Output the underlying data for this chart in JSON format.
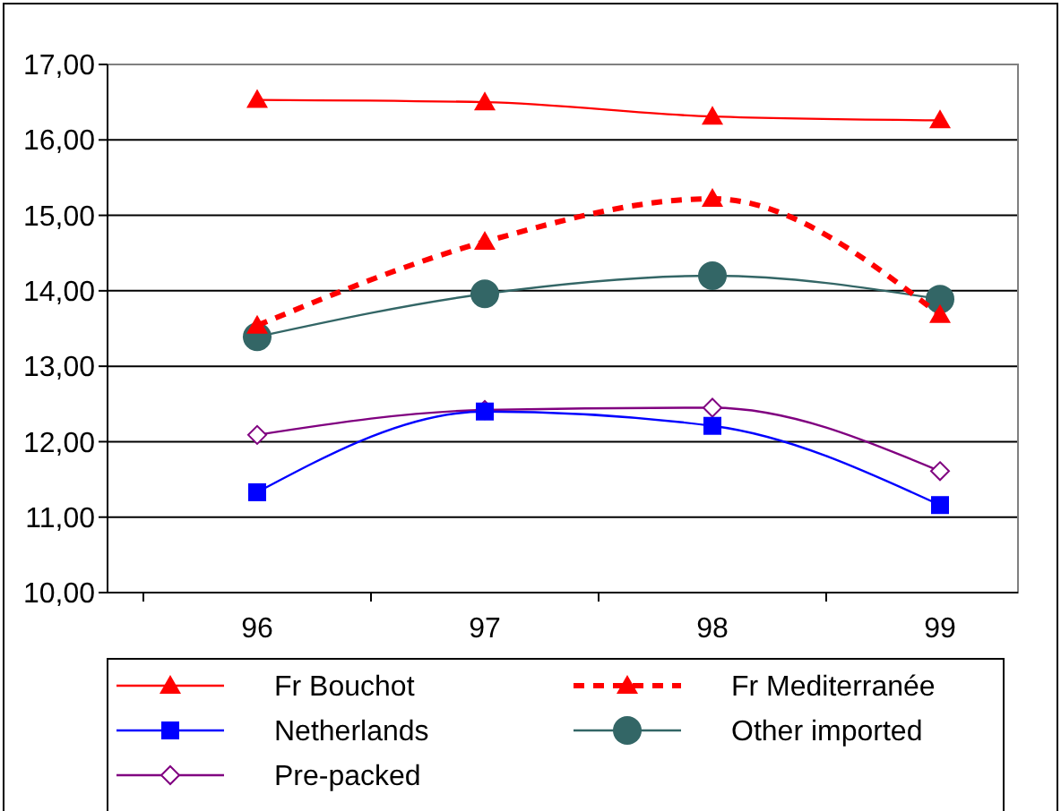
{
  "chart_data": {
    "type": "line",
    "categories": [
      "96",
      "97",
      "98",
      "99"
    ],
    "ylim": [
      10,
      17
    ],
    "yticks": [
      {
        "value": 10,
        "label": "10,00"
      },
      {
        "value": 11,
        "label": "11,00"
      },
      {
        "value": 12,
        "label": "12,00"
      },
      {
        "value": 13,
        "label": "13,00"
      },
      {
        "value": 14,
        "label": "14,00"
      },
      {
        "value": 15,
        "label": "15,00"
      },
      {
        "value": 16,
        "label": "16,00"
      },
      {
        "value": 17,
        "label": "17,00"
      }
    ],
    "grid": "y",
    "legend": "bottom",
    "series": [
      {
        "name": "Fr Bouchot",
        "color": "#ff0000",
        "values": [
          16.53,
          16.5,
          16.31,
          16.26
        ],
        "marker": "triangle",
        "line_style": "solid"
      },
      {
        "name": "Fr Mediterranée",
        "color": "#ff0000",
        "values": [
          13.54,
          14.65,
          15.22,
          13.68
        ],
        "marker": "triangle",
        "line_style": "dashed"
      },
      {
        "name": "Netherlands",
        "color": "#0000ff",
        "values": [
          11.33,
          12.4,
          12.21,
          11.16
        ],
        "marker": "square",
        "line_style": "solid"
      },
      {
        "name": "Other imported",
        "color": "#336666",
        "values": [
          13.39,
          13.96,
          14.2,
          13.89
        ],
        "marker": "circle",
        "line_style": "solid"
      },
      {
        "name": "Pre-packed",
        "color": "#800080",
        "values": [
          12.09,
          12.42,
          12.45,
          11.61
        ],
        "marker": "diamond",
        "line_style": "solid"
      }
    ]
  }
}
